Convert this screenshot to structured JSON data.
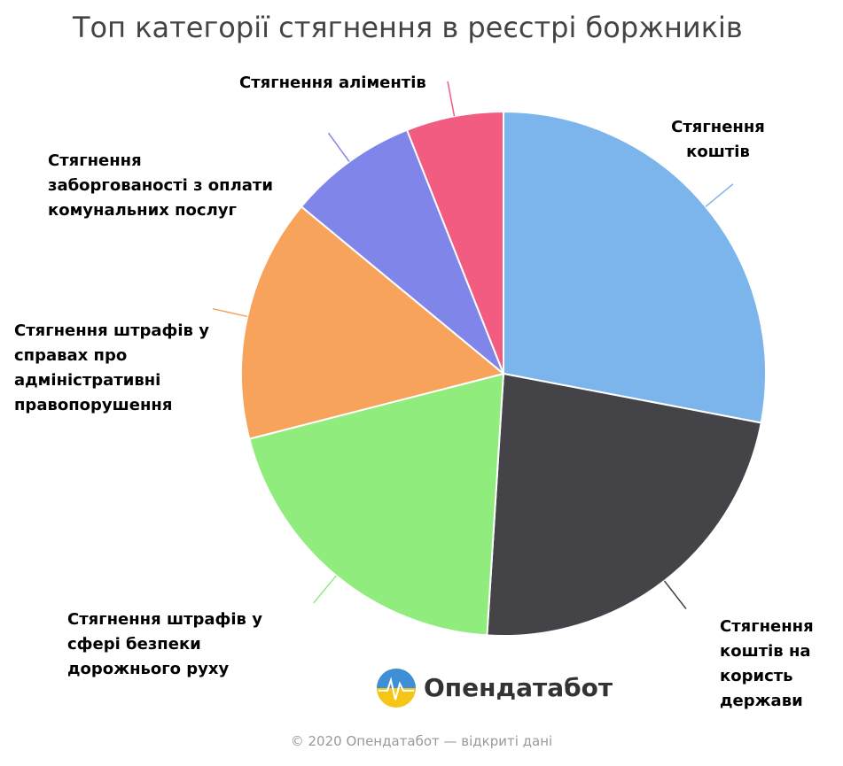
{
  "chart_data": {
    "type": "pie",
    "title": "Топ категорії стягнення в реєстрі боржників",
    "categories": [
      "Стягнення коштів",
      "Стягнення коштів на користь держави",
      "Стягнення штрафів у сфері безпеки дорожнього руху",
      "Стягнення штрафів у справах про адміністративні правопорушення",
      "Стягнення заборгованості з оплати комунальних послуг",
      "Стягнення аліментів"
    ],
    "values": [
      28,
      23,
      20,
      15,
      8,
      6
    ],
    "colors": [
      "#7cb5ec",
      "#434348",
      "#90ed7d",
      "#f7a35c",
      "#8085e9",
      "#f15c80"
    ]
  },
  "logo": "Опендатабот",
  "footer": "© 2020 Опендатабот — відкриті дані"
}
